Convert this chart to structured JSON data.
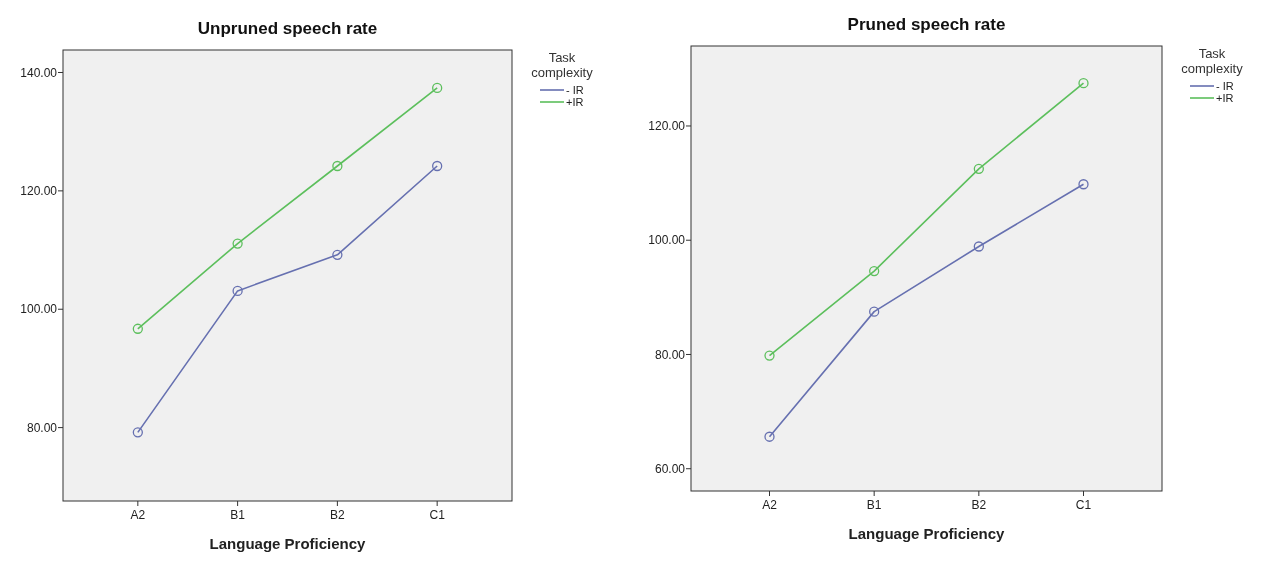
{
  "chart_data": [
    {
      "type": "line",
      "title": "Unpruned speech rate",
      "xlabel": "Language Proficiency",
      "legend_title": "Task complexity",
      "categories": [
        "A2",
        "B1",
        "B2",
        "C1"
      ],
      "series": [
        {
          "name": "- IR",
          "color": "#6670b0",
          "values": [
            79.2,
            103.1,
            109.2,
            124.2
          ]
        },
        {
          "name": "+IR",
          "color": "#5cbf5c",
          "values": [
            96.7,
            111.1,
            124.2,
            137.4
          ]
        }
      ],
      "ylim": [
        67.6,
        143.8
      ],
      "yticks": [
        {
          "value": 80,
          "label": "80.00"
        },
        {
          "value": 100,
          "label": "100.00"
        },
        {
          "value": 120,
          "label": "120.00"
        },
        {
          "value": 140,
          "label": "140.00"
        }
      ],
      "marker": "circle",
      "legend": "right",
      "grid": false
    },
    {
      "type": "line",
      "title": "Pruned speech rate",
      "xlabel": "Language Proficiency",
      "legend_title": "Task complexity",
      "categories": [
        "A2",
        "B1",
        "B2",
        "C1"
      ],
      "series": [
        {
          "name": "- IR",
          "color": "#6670b0",
          "values": [
            65.6,
            87.5,
            98.9,
            109.8
          ]
        },
        {
          "name": "+IR",
          "color": "#5cbf5c",
          "values": [
            79.8,
            94.6,
            112.5,
            127.5
          ]
        }
      ],
      "ylim": [
        56.1,
        134.0
      ],
      "yticks": [
        {
          "value": 60,
          "label": "60.00"
        },
        {
          "value": 80,
          "label": "80.00"
        },
        {
          "value": 100,
          "label": "100.00"
        },
        {
          "value": 120,
          "label": "120.00"
        }
      ],
      "marker": "circle",
      "legend": "right",
      "grid": false
    }
  ]
}
